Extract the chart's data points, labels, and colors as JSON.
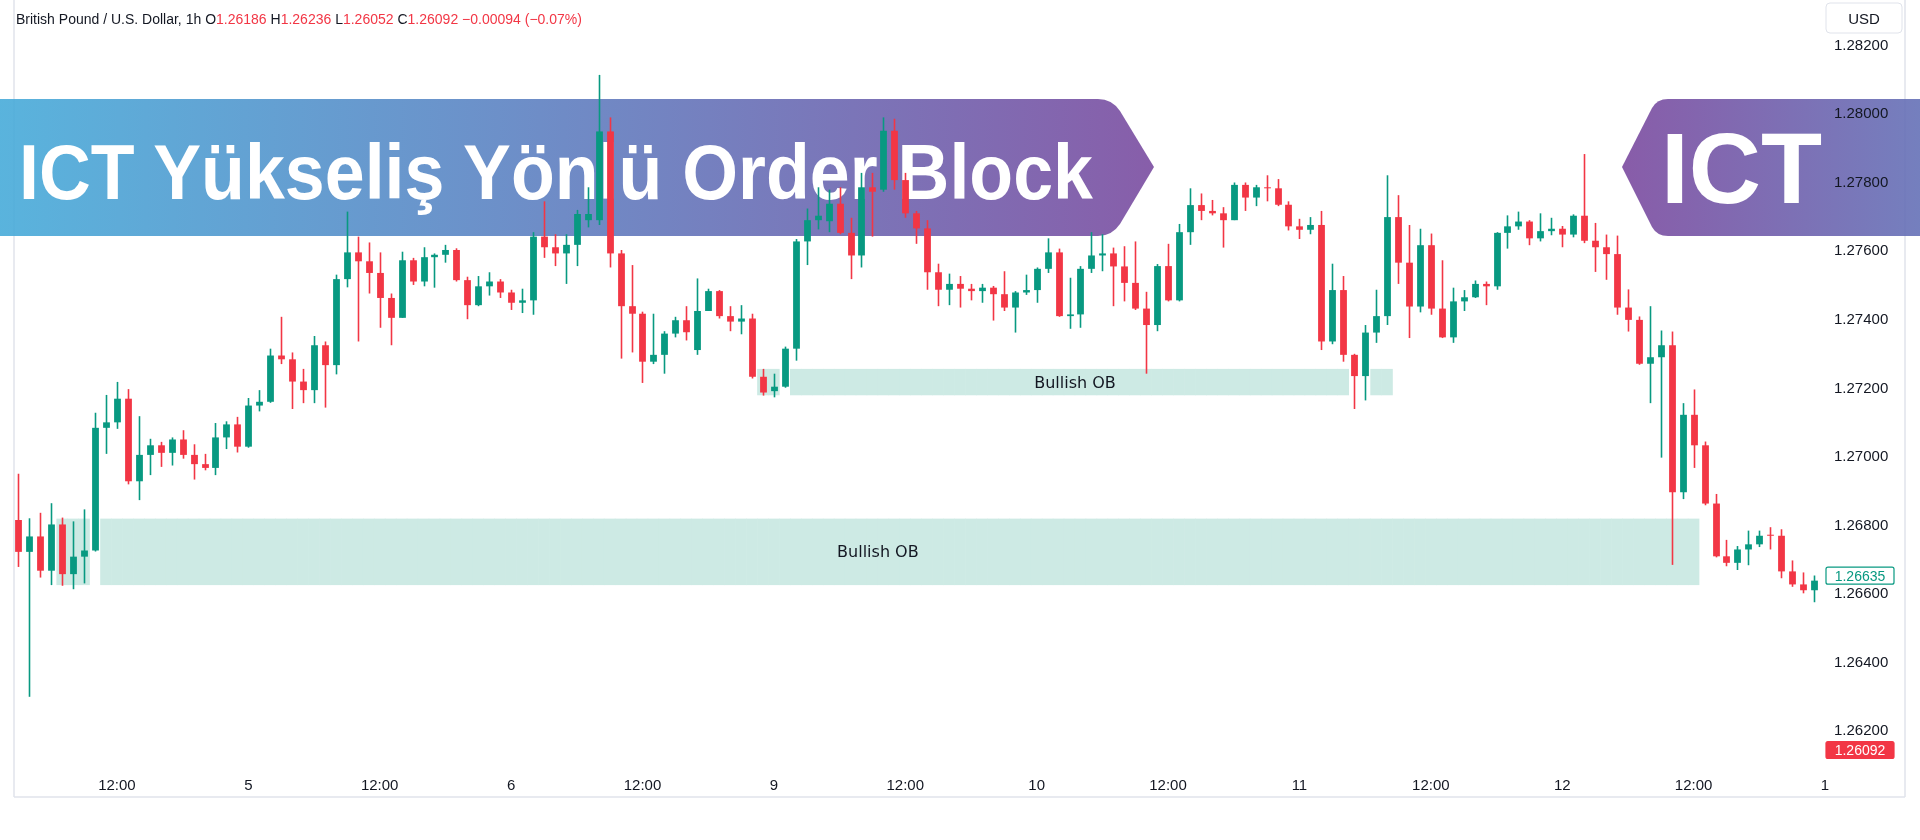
{
  "chart_data": {
    "type": "candlestick",
    "title": "ICT Yükseliş Yönlü Order Block",
    "subtitle": "British Pound / U.S. Dollar, 1h O1.26186 H1.26236 L1.26052 C1.26092 −0.00094 (−0.07%)",
    "ylabel": "USD",
    "annotations": [
      "ICT",
      "1.26635",
      "1.26092"
    ],
    "categories": [
      null,
      null,
      null,
      null,
      null,
      null,
      null,
      null,
      null,
      "12:00",
      null,
      null,
      null,
      null,
      null,
      null,
      null,
      null,
      null,
      null,
      null,
      "5",
      null,
      null,
      null,
      null,
      null,
      null,
      null,
      null,
      null,
      null,
      null,
      "12:00",
      null,
      null,
      null,
      null,
      null,
      null,
      null,
      null,
      null,
      null,
      null,
      "6",
      null,
      null,
      null,
      null,
      null,
      null,
      null,
      null,
      null,
      null,
      null,
      "12:00",
      null,
      null,
      null,
      null,
      null,
      null,
      null,
      null,
      null,
      null,
      null,
      "9",
      null,
      null,
      null,
      null,
      null,
      null,
      null,
      null,
      null,
      null,
      null,
      "12:00",
      null,
      null,
      null,
      null,
      null,
      null,
      null,
      null,
      null,
      null,
      null,
      "10",
      null,
      null,
      null,
      null,
      null,
      null,
      null,
      null,
      null,
      null,
      null,
      "12:00",
      null,
      null,
      null,
      null,
      null,
      null,
      null,
      null,
      null,
      null,
      null,
      "11",
      null,
      null,
      null,
      null,
      null,
      null,
      null,
      null,
      null,
      null,
      null,
      "12:00",
      null,
      null,
      null,
      null,
      null,
      null,
      null,
      null,
      null,
      null,
      null,
      "12",
      null,
      null,
      null,
      null,
      null,
      null,
      null,
      null,
      null,
      null,
      null,
      "12:00",
      null,
      null,
      null,
      null,
      null,
      null,
      null,
      null,
      null,
      null,
      null,
      "1"
    ],
    "ohlc": [
      [
        1.26812,
        1.26947,
        1.26675,
        1.26719
      ],
      [
        1.26719,
        1.26817,
        1.26296,
        1.26764
      ],
      [
        1.26764,
        1.26833,
        1.26644,
        1.26664
      ],
      [
        1.26664,
        1.26861,
        1.26622,
        1.26799
      ],
      [
        1.26799,
        1.26819,
        1.2662,
        1.26654
      ],
      [
        1.26654,
        1.26808,
        1.2661,
        1.26705
      ],
      [
        1.26705,
        1.26843,
        1.26627,
        1.26723
      ],
      [
        1.26723,
        1.27125,
        1.2672,
        1.27081
      ],
      [
        1.27081,
        1.27177,
        1.27005,
        1.27097
      ],
      [
        1.27097,
        1.27215,
        1.27078,
        1.27166
      ],
      [
        1.27166,
        1.27194,
        1.26916,
        1.26925
      ],
      [
        1.26925,
        1.27115,
        1.2687,
        1.27002
      ],
      [
        1.27002,
        1.27049,
        1.26943,
        1.2703
      ],
      [
        1.2703,
        1.2704,
        1.26967,
        1.27008
      ],
      [
        1.27008,
        1.27053,
        1.26971,
        1.27047
      ],
      [
        1.27047,
        1.27074,
        1.26991,
        1.27002
      ],
      [
        1.27002,
        1.27033,
        1.2693,
        1.26975
      ],
      [
        1.26975,
        1.27005,
        1.26957,
        1.26964
      ],
      [
        1.26964,
        1.27095,
        1.26943,
        1.27053
      ],
      [
        1.27053,
        1.271,
        1.27019,
        1.27091
      ],
      [
        1.27091,
        1.27113,
        1.27009,
        1.27026
      ],
      [
        1.27026,
        1.27168,
        1.27023,
        1.27146
      ],
      [
        1.27146,
        1.27191,
        1.27129,
        1.27157
      ],
      [
        1.27157,
        1.27312,
        1.27154,
        1.27292
      ],
      [
        1.27292,
        1.27405,
        1.27267,
        1.27281
      ],
      [
        1.27281,
        1.27301,
        1.27136,
        1.27216
      ],
      [
        1.27216,
        1.27253,
        1.27153,
        1.27191
      ],
      [
        1.27191,
        1.27349,
        1.27153,
        1.27322
      ],
      [
        1.27322,
        1.27333,
        1.2714,
        1.27264
      ],
      [
        1.27264,
        1.27528,
        1.27237,
        1.27515
      ],
      [
        1.27515,
        1.27712,
        1.27491,
        1.27593
      ],
      [
        1.27593,
        1.27639,
        1.27333,
        1.27567
      ],
      [
        1.27567,
        1.27622,
        1.27473,
        1.27533
      ],
      [
        1.27533,
        1.27593,
        1.27373,
        1.2746
      ],
      [
        1.2746,
        1.27473,
        1.27322,
        1.27402
      ],
      [
        1.27402,
        1.27595,
        1.27402,
        1.2757
      ],
      [
        1.2757,
        1.27577,
        1.27498,
        1.27508
      ],
      [
        1.27508,
        1.27608,
        1.27494,
        1.27579
      ],
      [
        1.27579,
        1.2759,
        1.2749,
        1.27586
      ],
      [
        1.27586,
        1.27615,
        1.27563,
        1.276
      ],
      [
        1.276,
        1.27605,
        1.27508,
        1.27512
      ],
      [
        1.27512,
        1.27522,
        1.27398,
        1.27439
      ],
      [
        1.27439,
        1.27524,
        1.27436,
        1.27494
      ],
      [
        1.27494,
        1.27535,
        1.27467,
        1.27508
      ],
      [
        1.27508,
        1.27515,
        1.2746,
        1.27476
      ],
      [
        1.27476,
        1.27484,
        1.27425,
        1.27446
      ],
      [
        1.27446,
        1.27487,
        1.27416,
        1.27453
      ],
      [
        1.27453,
        1.27652,
        1.27411,
        1.27639
      ],
      [
        1.27639,
        1.27742,
        1.27577,
        1.27608
      ],
      [
        1.27608,
        1.27646,
        1.27553,
        1.2759
      ],
      [
        1.2759,
        1.27646,
        1.27501,
        1.27615
      ],
      [
        1.27615,
        1.27717,
        1.27553,
        1.27705
      ],
      [
        1.27687,
        1.27783,
        1.27666,
        1.27705
      ],
      [
        1.27687,
        1.28111,
        1.27673,
        1.27946
      ],
      [
        1.27946,
        1.27987,
        1.27549,
        1.2759
      ],
      [
        1.2759,
        1.276,
        1.27283,
        1.27436
      ],
      [
        1.27436,
        1.27556,
        1.27301,
        1.27414
      ],
      [
        1.27414,
        1.2742,
        1.27212,
        1.27274
      ],
      [
        1.27274,
        1.27414,
        1.27267,
        1.27294
      ],
      [
        1.27294,
        1.27363,
        1.27239,
        1.27356
      ],
      [
        1.27356,
        1.27405,
        1.27345,
        1.27395
      ],
      [
        1.27395,
        1.27436,
        1.27336,
        1.2736
      ],
      [
        1.27308,
        1.27517,
        1.27294,
        1.27422
      ],
      [
        1.27422,
        1.27487,
        1.27422,
        1.2748
      ],
      [
        1.2748,
        1.27483,
        1.274,
        1.27407
      ],
      [
        1.27407,
        1.27436,
        1.27363,
        1.27391
      ],
      [
        1.27391,
        1.27439,
        1.27354,
        1.274
      ],
      [
        1.274,
        1.27414,
        1.27225,
        1.2723
      ],
      [
        1.2723,
        1.27253,
        1.27175,
        1.27184
      ],
      [
        1.27188,
        1.27239,
        1.2717,
        1.27201
      ],
      [
        1.27201,
        1.27318,
        1.27198,
        1.27312
      ],
      [
        1.27312,
        1.27632,
        1.27277,
        1.27625
      ],
      [
        1.27625,
        1.27721,
        1.27556,
        1.27687
      ],
      [
        1.27687,
        1.27783,
        1.2766,
        1.277
      ],
      [
        1.27684,
        1.27776,
        1.27652,
        1.27735
      ],
      [
        1.27735,
        1.27783,
        1.27646,
        1.2765
      ],
      [
        1.2765,
        1.27694,
        1.27515,
        1.27584
      ],
      [
        1.27584,
        1.27825,
        1.27549,
        1.27783
      ],
      [
        1.27783,
        1.27825,
        1.27639,
        1.2777
      ],
      [
        1.27776,
        1.27987,
        1.2777,
        1.27948
      ],
      [
        1.27948,
        1.27983,
        1.27776,
        1.27804
      ],
      [
        1.27804,
        1.27825,
        1.27694,
        1.27707
      ],
      [
        1.27707,
        1.27714,
        1.27618,
        1.27663
      ],
      [
        1.27663,
        1.27687,
        1.27484,
        1.27535
      ],
      [
        1.27535,
        1.2756,
        1.27436,
        1.27484
      ],
      [
        1.27484,
        1.27531,
        1.27439,
        1.27501
      ],
      [
        1.27501,
        1.27524,
        1.27432,
        1.27487
      ],
      [
        1.27487,
        1.27501,
        1.27453,
        1.2748
      ],
      [
        1.2748,
        1.27501,
        1.27446,
        1.2749
      ],
      [
        1.2749,
        1.27495,
        1.27394,
        1.27471
      ],
      [
        1.27471,
        1.27538,
        1.27422,
        1.27432
      ],
      [
        1.27432,
        1.2748,
        1.27359,
        1.27476
      ],
      [
        1.27476,
        1.27528,
        1.27469,
        1.27483
      ],
      [
        1.27483,
        1.27549,
        1.27446,
        1.27545
      ],
      [
        1.27545,
        1.27634,
        1.27533,
        1.27593
      ],
      [
        1.27593,
        1.27604,
        1.27405,
        1.27407
      ],
      [
        1.27407,
        1.27519,
        1.2737,
        1.27412
      ],
      [
        1.27412,
        1.27553,
        1.27373,
        1.27545
      ],
      [
        1.27545,
        1.27652,
        1.27533,
        1.27584
      ],
      [
        1.27584,
        1.27646,
        1.27538,
        1.2759
      ],
      [
        1.2759,
        1.27607,
        1.27436,
        1.27552
      ],
      [
        1.27552,
        1.27611,
        1.2745,
        1.27504
      ],
      [
        1.27504,
        1.27625,
        1.27425,
        1.27429
      ],
      [
        1.27429,
        1.27478,
        1.27239,
        1.27381
      ],
      [
        1.27381,
        1.27559,
        1.27363,
        1.27553
      ],
      [
        1.27553,
        1.27618,
        1.2745,
        1.27453
      ],
      [
        1.27453,
        1.27676,
        1.2745,
        1.27652
      ],
      [
        1.27652,
        1.2778,
        1.27615,
        1.27731
      ],
      [
        1.27731,
        1.27765,
        1.27687,
        1.27714
      ],
      [
        1.27714,
        1.27746,
        1.27701,
        1.27707
      ],
      [
        1.27707,
        1.27725,
        1.27607,
        1.27687
      ],
      [
        1.27687,
        1.27797,
        1.27687,
        1.2779
      ],
      [
        1.2779,
        1.27797,
        1.27714,
        1.27753
      ],
      [
        1.27753,
        1.2779,
        1.27728,
        1.27783
      ],
      [
        1.27783,
        1.27818,
        1.27742,
        1.2778
      ],
      [
        1.2778,
        1.27807,
        1.27728,
        1.27732
      ],
      [
        1.27732,
        1.27742,
        1.27657,
        1.27669
      ],
      [
        1.27669,
        1.27691,
        1.27632,
        1.27659
      ],
      [
        1.27659,
        1.27696,
        1.27646,
        1.27673
      ],
      [
        1.27673,
        1.27714,
        1.27308,
        1.27333
      ],
      [
        1.27333,
        1.2756,
        1.27325,
        1.27483
      ],
      [
        1.27483,
        1.27524,
        1.27274,
        1.27294
      ],
      [
        1.27294,
        1.27297,
        1.27136,
        1.27232
      ],
      [
        1.27232,
        1.27381,
        1.27161,
        1.27359
      ],
      [
        1.27359,
        1.27484,
        1.27329,
        1.27407
      ],
      [
        1.27407,
        1.27818,
        1.27381,
        1.27696
      ],
      [
        1.27696,
        1.2776,
        1.27501,
        1.27563
      ],
      [
        1.27563,
        1.27673,
        1.27343,
        1.27435
      ],
      [
        1.27435,
        1.27662,
        1.27418,
        1.27614
      ],
      [
        1.27614,
        1.27648,
        1.27411,
        1.27429
      ],
      [
        1.27429,
        1.2757,
        1.27343,
        1.27345
      ],
      [
        1.27345,
        1.2749,
        1.27329,
        1.2745
      ],
      [
        1.2745,
        1.27483,
        1.27422,
        1.27462
      ],
      [
        1.27462,
        1.27511,
        1.2746,
        1.27501
      ],
      [
        1.27501,
        1.27508,
        1.27439,
        1.27494
      ],
      [
        1.27494,
        1.27652,
        1.27484,
        1.2765
      ],
      [
        1.2765,
        1.27701,
        1.27604,
        1.27669
      ],
      [
        1.27669,
        1.27712,
        1.27659,
        1.27683
      ],
      [
        1.27683,
        1.27687,
        1.27614,
        1.27634
      ],
      [
        1.27634,
        1.27707,
        1.27625,
        1.27655
      ],
      [
        1.27655,
        1.27694,
        1.27643,
        1.27662
      ],
      [
        1.27662,
        1.2767,
        1.27608,
        1.27645
      ],
      [
        1.27645,
        1.27704,
        1.27637,
        1.277
      ],
      [
        1.277,
        1.2788,
        1.2762,
        1.27627
      ],
      [
        1.27627,
        1.27679,
        1.27536,
        1.27608
      ],
      [
        1.27608,
        1.27645,
        1.27513,
        1.27588
      ],
      [
        1.27588,
        1.27642,
        1.27411,
        1.27432
      ],
      [
        1.27432,
        1.27485,
        1.27362,
        1.27396
      ],
      [
        1.27396,
        1.27406,
        1.27265,
        1.27268
      ],
      [
        1.27268,
        1.27436,
        1.27153,
        1.27287
      ],
      [
        1.27287,
        1.27365,
        1.26994,
        1.27322
      ],
      [
        1.27322,
        1.27362,
        1.26681,
        1.26893
      ],
      [
        1.26893,
        1.27153,
        1.26873,
        1.27119
      ],
      [
        1.27119,
        1.27193,
        1.26964,
        1.2703
      ],
      [
        1.2703,
        1.27041,
        1.26855,
        1.2686
      ],
      [
        1.2686,
        1.26888,
        1.26703,
        1.26706
      ],
      [
        1.26706,
        1.26754,
        1.26677,
        1.26687
      ],
      [
        1.26687,
        1.26736,
        1.26666,
        1.26726
      ],
      [
        1.26726,
        1.26781,
        1.2668,
        1.26741
      ],
      [
        1.26741,
        1.26781,
        1.26733,
        1.26766
      ],
      [
        1.26769,
        1.26791,
        1.26726,
        1.26766
      ],
      [
        1.26766,
        1.26785,
        1.26642,
        1.26662
      ],
      [
        1.26662,
        1.26694,
        1.26617,
        1.26624
      ],
      [
        1.26624,
        1.26659,
        1.26598,
        1.26607
      ],
      [
        1.26607,
        1.2665,
        1.26572,
        1.26635
      ],
      null
    ],
    "colors": [
      "#f23645",
      "#089981",
      "#f23645",
      "#089981",
      "#f23645",
      "#089981",
      "#089981",
      "#089981",
      "#089981",
      "#089981",
      "#f23645",
      "#089981",
      "#089981",
      "#f23645",
      "#089981",
      "#f23645",
      "#f23645",
      "#f23645",
      "#089981",
      "#089981",
      "#f23645",
      "#089981",
      "#089981",
      "#089981",
      "#f23645",
      "#f23645",
      "#f23645",
      "#089981",
      "#f23645",
      "#089981",
      "#089981",
      "#f23645",
      "#f23645",
      "#f23645",
      "#f23645",
      "#089981",
      "#f23645",
      "#089981",
      "#089981",
      "#089981",
      "#f23645",
      "#f23645",
      "#089981",
      "#089981",
      "#f23645",
      "#f23645",
      "#089981",
      "#089981",
      "#f23645",
      "#f23645",
      "#089981",
      "#089981",
      "#089981",
      "#089981",
      "#f23645",
      "#f23645",
      "#f23645",
      "#f23645",
      "#089981",
      "#089981",
      "#089981",
      "#f23645",
      "#089981",
      "#089981",
      "#f23645",
      "#f23645",
      "#089981",
      "#f23645",
      "#f23645",
      "#089981",
      "#089981",
      "#089981",
      "#089981",
      "#089981",
      "#089981",
      "#f23645",
      "#f23645",
      "#089981",
      "#f23645",
      "#089981",
      "#f23645",
      "#f23645",
      "#f23645",
      "#f23645",
      "#f23645",
      "#089981",
      "#f23645",
      "#f23645",
      "#089981",
      "#f23645",
      "#f23645",
      "#089981",
      "#089981",
      "#089981",
      "#089981",
      "#f23645",
      "#089981",
      "#089981",
      "#089981",
      "#089981",
      "#f23645",
      "#f23645",
      "#f23645",
      "#f23645",
      "#089981",
      "#f23645",
      "#089981",
      "#089981",
      "#f23645",
      "#f23645",
      "#f23645",
      "#089981",
      "#f23645",
      "#089981",
      "#f23645",
      "#f23645",
      "#f23645",
      "#f23645",
      "#089981",
      "#f23645",
      "#089981",
      "#f23645",
      "#f23645",
      "#089981",
      "#089981",
      "#089981",
      "#f23645",
      "#f23645",
      "#089981",
      "#f23645",
      "#f23645",
      "#089981",
      "#089981",
      "#089981",
      "#f23645",
      "#089981",
      "#089981",
      "#089981",
      "#f23645",
      "#089981",
      "#089981",
      "#f23645",
      "#089981",
      "#f23645",
      "#f23645",
      "#f23645",
      "#f23645",
      "#f23645",
      "#f23645",
      "#089981",
      "#089981",
      "#f23645",
      "#089981",
      "#f23645",
      "#f23645",
      "#f23645",
      "#f23645",
      "#089981",
      "#089981",
      "#089981",
      "#f23645",
      "#f23645",
      "#f23645",
      "#f23645",
      "#089981",
      null
    ],
    "series": [
      {
        "type": "bar",
        "name": "Bullish OB",
        "color": "#cdeae4",
        "values": [
          null,
          null,
          null,
          null,
          0.00194,
          0.00194,
          0.00194,
          null,
          0.00194,
          0.00194,
          0.00194,
          0.00194,
          0.00194,
          0.00194,
          0.00194,
          0.00194,
          0.00194,
          0.00194,
          0.00194,
          0.00194,
          0.00194,
          0.00194,
          0.00194,
          0.00194,
          0.00194,
          0.00194,
          0.00194,
          0.00194,
          0.00194,
          0.00194,
          0.00194,
          0.00194,
          0.00194,
          0.00194,
          0.00194,
          0.00194,
          0.00194,
          0.00194,
          0.00194,
          0.00194,
          0.00194,
          0.00194,
          0.00194,
          0.00194,
          0.00194,
          0.00194,
          0.00194,
          0.00194,
          0.00194,
          0.00194,
          0.00194,
          0.00194,
          0.00194,
          0.00194,
          0.00194,
          0.00194,
          0.00194,
          0.00194,
          0.00194,
          0.00194,
          0.00194,
          0.00194,
          0.00194,
          0.00194,
          0.00194,
          0.00194,
          0.00194,
          0.00194,
          0.00194,
          0.00194,
          0.00194,
          0.00194,
          0.00194,
          0.00194,
          0.00194,
          0.00194,
          0.00194,
          0.00194,
          0.00194,
          0.00194,
          0.00194,
          0.00194,
          0.00194,
          0.00194,
          0.00194,
          0.00194,
          0.00194,
          0.00194,
          0.00194,
          0.00194,
          0.00194,
          0.00194,
          0.00194,
          0.00194,
          0.00194,
          0.00194,
          0.00194,
          0.00194,
          0.00194,
          0.00194,
          0.00194,
          0.00194,
          0.00194,
          0.00194,
          0.00194,
          0.00194,
          0.00194,
          0.00194,
          0.00194,
          0.00194,
          0.00194,
          0.00194,
          0.00194,
          0.00194,
          0.00194,
          0.00194,
          0.00194,
          0.00194,
          0.00194,
          0.00194,
          0.00194,
          0.00194,
          0.00194,
          0.00194,
          0.00194,
          0.00194,
          0.00194,
          0.00194,
          0.00194,
          0.00194,
          0.00194,
          0.00194,
          0.00194,
          0.00194,
          0.00194,
          0.00194,
          0.00194,
          0.00194,
          0.00194,
          0.00194,
          0.00194,
          0.00194,
          0.00194,
          0.00194,
          0.00194,
          0.00194,
          0.00194,
          0.00194,
          0.00194,
          0.00194,
          0.00194,
          0.00194,
          0.00194,
          0.00194,
          null,
          null,
          null,
          null,
          null,
          null,
          null,
          null,
          null,
          null,
          null,
          null
        ],
        "base": [
          null,
          null,
          null,
          null,
          1.26622,
          1.26622,
          1.26622,
          null,
          1.26622,
          1.26622,
          1.26622,
          1.26622,
          1.26622,
          1.26622,
          1.26622,
          1.26622,
          1.26622,
          1.26622,
          1.26622,
          1.26622,
          1.26622,
          1.26622,
          1.26622,
          1.26622,
          1.26622,
          1.26622,
          1.26622,
          1.26622,
          1.26622,
          1.26622,
          1.26622,
          1.26622,
          1.26622,
          1.26622,
          1.26622,
          1.26622,
          1.26622,
          1.26622,
          1.26622,
          1.26622,
          1.26622,
          1.26622,
          1.26622,
          1.26622,
          1.26622,
          1.26622,
          1.26622,
          1.26622,
          1.26622,
          1.26622,
          1.26622,
          1.26622,
          1.26622,
          1.26622,
          1.26622,
          1.26622,
          1.26622,
          1.26622,
          1.26622,
          1.26622,
          1.26622,
          1.26622,
          1.26622,
          1.26622,
          1.26622,
          1.26622,
          1.26622,
          1.26622,
          1.26622,
          1.26622,
          1.26622,
          1.26622,
          1.26622,
          1.26622,
          1.26622,
          1.26622,
          1.26622,
          1.26622,
          1.26622,
          1.26622,
          1.26622,
          1.26622,
          1.26622,
          1.26622,
          1.26622,
          1.26622,
          1.26622,
          1.26622,
          1.26622,
          1.26622,
          1.26622,
          1.26622,
          1.26622,
          1.26622,
          1.26622,
          1.26622,
          1.26622,
          1.26622,
          1.26622,
          1.26622,
          1.26622,
          1.26622,
          1.26622,
          1.26622,
          1.26622,
          1.26622,
          1.26622,
          1.26622,
          1.26622,
          1.26622,
          1.26622,
          1.26622,
          1.26622,
          1.26622,
          1.26622,
          1.26622,
          1.26622,
          1.26622,
          1.26622,
          1.26622,
          1.26622,
          1.26622,
          1.26622,
          1.26622,
          1.26622,
          1.26622,
          1.26622,
          1.26622,
          1.26622,
          1.26622,
          1.26622,
          1.26622,
          1.26622,
          1.26622,
          1.26622,
          1.26622,
          1.26622,
          1.26622,
          1.26622,
          1.26622,
          1.26622,
          1.26622,
          1.26622,
          1.26622,
          1.26622,
          1.26622,
          1.26622,
          1.26622,
          1.26622,
          1.26622,
          1.26622,
          1.26622,
          1.26622,
          1.26622,
          null,
          null,
          null,
          null,
          null,
          null,
          null,
          null,
          null,
          null,
          null,
          null
        ]
      },
      {
        "type": "bar",
        "name": "Bullish OB",
        "color": "#cdeae4",
        "values": [
          null,
          null,
          null,
          null,
          null,
          null,
          null,
          null,
          null,
          null,
          null,
          null,
          null,
          null,
          null,
          null,
          null,
          null,
          null,
          null,
          null,
          null,
          null,
          null,
          null,
          null,
          null,
          null,
          null,
          null,
          null,
          null,
          null,
          null,
          null,
          null,
          null,
          null,
          null,
          null,
          null,
          null,
          null,
          null,
          null,
          null,
          null,
          null,
          null,
          null,
          null,
          null,
          null,
          null,
          null,
          null,
          null,
          null,
          null,
          null,
          null,
          null,
          null,
          null,
          null,
          null,
          null,
          null,
          0.00077,
          0.00077,
          null,
          0.00077,
          0.00077,
          0.00077,
          0.00077,
          0.00077,
          0.00077,
          0.00077,
          0.00077,
          0.00077,
          0.00077,
          0.00077,
          0.00077,
          0.00077,
          0.00077,
          0.00077,
          0.00077,
          0.00077,
          0.00077,
          0.00077,
          0.00077,
          0.00077,
          0.00077,
          0.00077,
          0.00077,
          0.00077,
          0.00077,
          0.00077,
          0.00077,
          0.00077,
          0.00077,
          0.00077,
          0.00077,
          0.00077,
          0.00077,
          0.00077,
          0.00077,
          0.00077,
          0.00077,
          0.00077,
          0.00077,
          0.00077,
          0.00077,
          0.00077,
          0.00077,
          0.00077,
          0.00077,
          0.00077,
          0.00077,
          0.00077,
          0.00077,
          0.00077,
          null,
          null,
          0.00077,
          0.00077,
          null,
          null,
          null,
          null,
          null,
          null,
          null,
          null,
          null,
          null,
          null,
          null,
          null,
          null,
          null,
          null,
          null,
          null,
          null,
          null,
          null,
          null,
          null,
          null,
          null,
          null,
          null,
          null,
          null,
          null,
          null,
          null,
          null,
          null,
          null,
          null,
          null,
          null,
          null,
          null
        ],
        "base": [
          null,
          null,
          null,
          null,
          null,
          null,
          null,
          null,
          null,
          null,
          null,
          null,
          null,
          null,
          null,
          null,
          null,
          null,
          null,
          null,
          null,
          null,
          null,
          null,
          null,
          null,
          null,
          null,
          null,
          null,
          null,
          null,
          null,
          null,
          null,
          null,
          null,
          null,
          null,
          null,
          null,
          null,
          null,
          null,
          null,
          null,
          null,
          null,
          null,
          null,
          null,
          null,
          null,
          null,
          null,
          null,
          null,
          null,
          null,
          null,
          null,
          null,
          null,
          null,
          null,
          null,
          null,
          null,
          1.27176,
          1.27176,
          null,
          1.27176,
          1.27176,
          1.27176,
          1.27176,
          1.27176,
          1.27176,
          1.27176,
          1.27176,
          1.27176,
          1.27176,
          1.27176,
          1.27176,
          1.27176,
          1.27176,
          1.27176,
          1.27176,
          1.27176,
          1.27176,
          1.27176,
          1.27176,
          1.27176,
          1.27176,
          1.27176,
          1.27176,
          1.27176,
          1.27176,
          1.27176,
          1.27176,
          1.27176,
          1.27176,
          1.27176,
          1.27176,
          1.27176,
          1.27176,
          1.27176,
          1.27176,
          1.27176,
          1.27176,
          1.27176,
          1.27176,
          1.27176,
          1.27176,
          1.27176,
          1.27176,
          1.27176,
          1.27176,
          1.27176,
          1.27176,
          1.27176,
          1.27176,
          1.27176,
          null,
          null,
          1.27176,
          1.27176,
          null,
          null,
          null,
          null,
          null,
          null,
          null,
          null,
          null,
          null,
          null,
          null,
          null,
          null,
          null,
          null,
          null,
          null,
          null,
          null,
          null,
          null,
          null,
          null,
          null,
          null,
          null,
          null,
          null,
          null,
          null,
          null,
          null,
          null,
          null,
          null,
          null,
          null,
          null,
          null
        ]
      }
    ],
    "ylim": [
      1.262,
      1.282
    ],
    "yticks": [
      {
        "value": 1.262,
        "label": "1.26200"
      },
      {
        "value": 1.264,
        "label": "1.26400"
      },
      {
        "value": 1.266,
        "label": "1.26600"
      },
      {
        "value": 1.268,
        "label": "1.26800"
      },
      {
        "value": 1.27,
        "label": "1.27000"
      },
      {
        "value": 1.272,
        "label": "1.27200"
      },
      {
        "value": 1.274,
        "label": "1.27400"
      },
      {
        "value": 1.276,
        "label": "1.27600"
      },
      {
        "value": 1.278,
        "label": "1.27800"
      },
      {
        "value": 1.28,
        "label": "1.28000"
      },
      {
        "value": 1.282,
        "label": "1.28200"
      }
    ]
  }
}
